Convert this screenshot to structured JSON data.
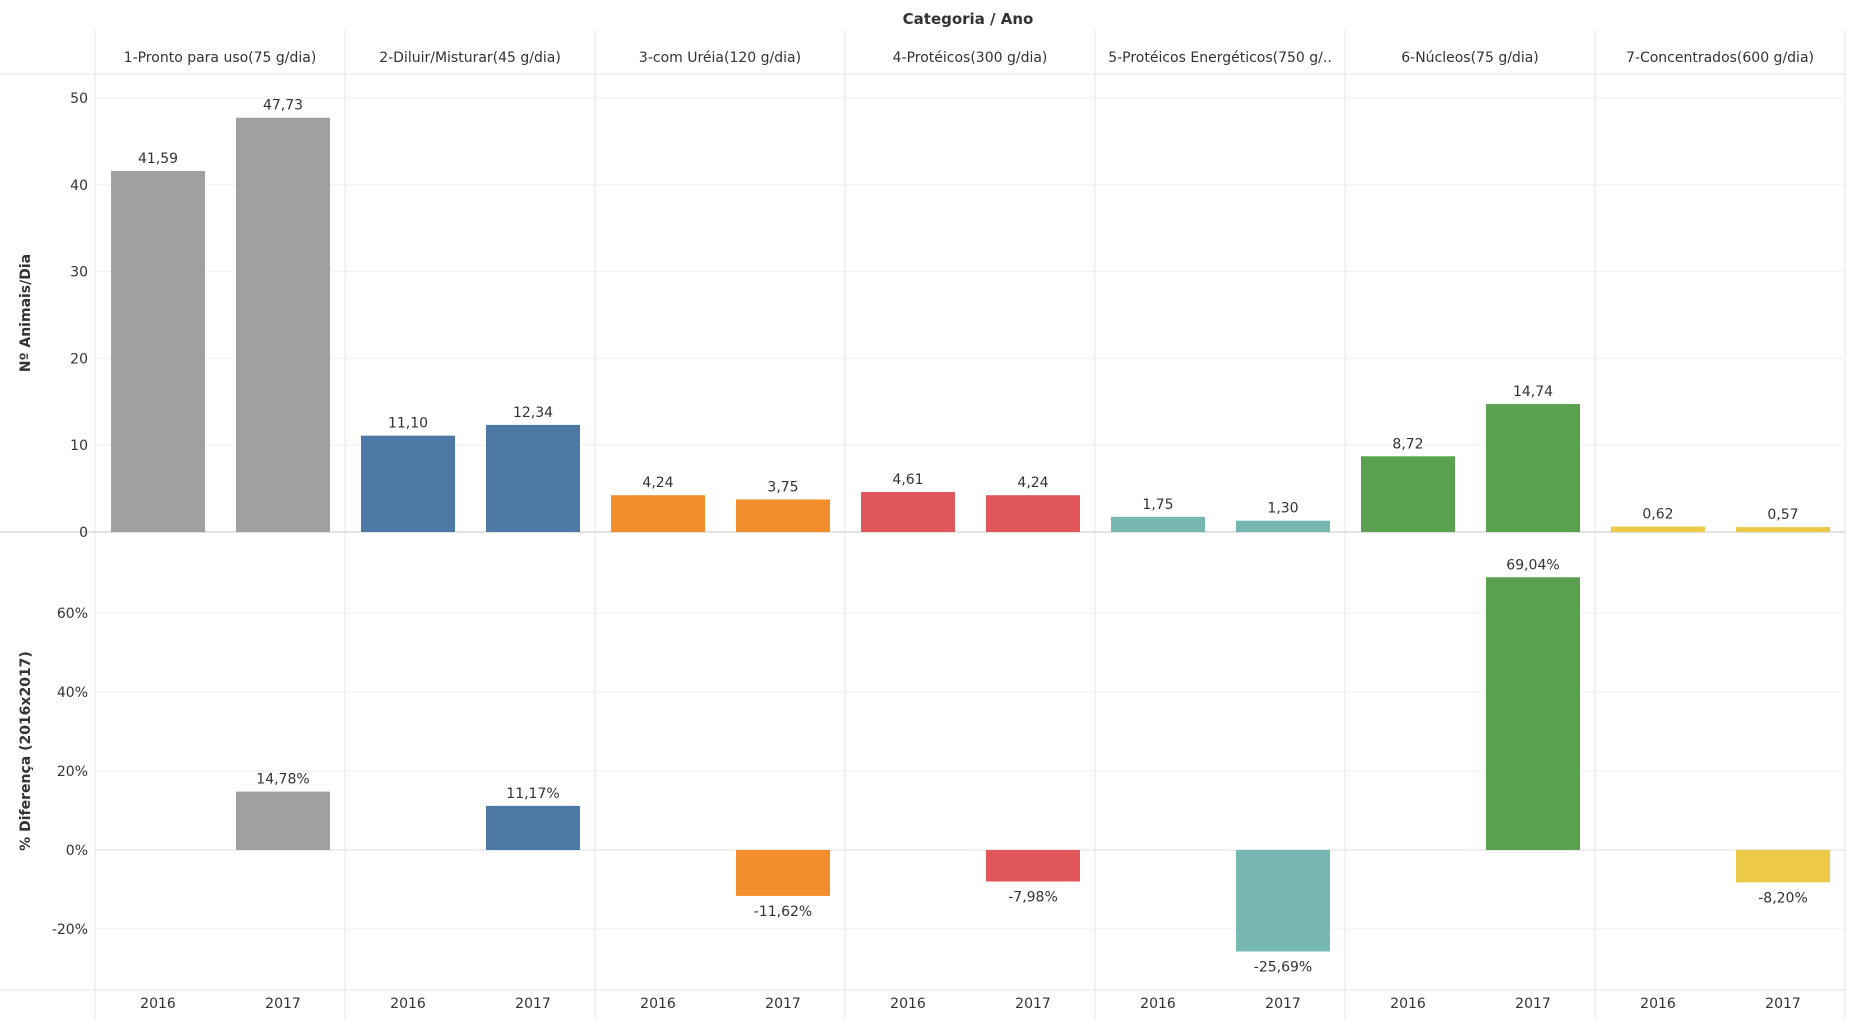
{
  "chart_data": {
    "type": "bar",
    "header": "Categoria / Ano",
    "categories": [
      "1-Pronto para uso(75 g/dia)",
      "2-Diluir/Misturar(45 g/dia)",
      "3-com Uréia(120 g/dia)",
      "4-Protéicos(300 g/dia)",
      "5-Protéicos Energéticos(750 g/..",
      "6-Núcleos(75 g/dia)",
      "7-Concentrados(600 g/dia)"
    ],
    "years": [
      "2016",
      "2017"
    ],
    "colors": [
      "#a0a0a0",
      "#4e79a7",
      "#f28e2b",
      "#e15759",
      "#76b7b2",
      "#59a14f",
      "#edc948"
    ],
    "top_panel": {
      "ylabel": "Nº Animais/Dia",
      "ylim": [
        0,
        50
      ],
      "ticks": [
        {
          "value": 0,
          "label": "0"
        },
        {
          "value": 10,
          "label": "10"
        },
        {
          "value": 20,
          "label": "20"
        },
        {
          "value": 30,
          "label": "30"
        },
        {
          "value": 40,
          "label": "40"
        },
        {
          "value": 50,
          "label": "50"
        }
      ],
      "values": [
        [
          41.59,
          47.73
        ],
        [
          11.1,
          12.34
        ],
        [
          4.24,
          3.75
        ],
        [
          4.61,
          4.24
        ],
        [
          1.75,
          1.3
        ],
        [
          8.72,
          14.74
        ],
        [
          0.62,
          0.57
        ]
      ],
      "labels": [
        [
          "41,59",
          "47,73"
        ],
        [
          "11,10",
          "12,34"
        ],
        [
          "4,24",
          "3,75"
        ],
        [
          "4,61",
          "4,24"
        ],
        [
          "1,75",
          "1,30"
        ],
        [
          "8,72",
          "14,74"
        ],
        [
          "0,62",
          "0,57"
        ]
      ]
    },
    "bottom_panel": {
      "ylabel": "% Diferença (2016x2017)",
      "ylim": [
        -30,
        70
      ],
      "ticks": [
        {
          "value": -20,
          "label": "-20%"
        },
        {
          "value": 0,
          "label": "0%"
        },
        {
          "value": 20,
          "label": "20%"
        },
        {
          "value": 40,
          "label": "40%"
        },
        {
          "value": 60,
          "label": "60%"
        }
      ],
      "values": [
        14.78,
        11.17,
        -11.62,
        -7.98,
        -25.69,
        69.04,
        -8.2
      ],
      "labels": [
        "14,78%",
        "11,17%",
        "-11,62%",
        "-7,98%",
        "-25,69%",
        "69,04%",
        "-8,20%"
      ]
    }
  }
}
